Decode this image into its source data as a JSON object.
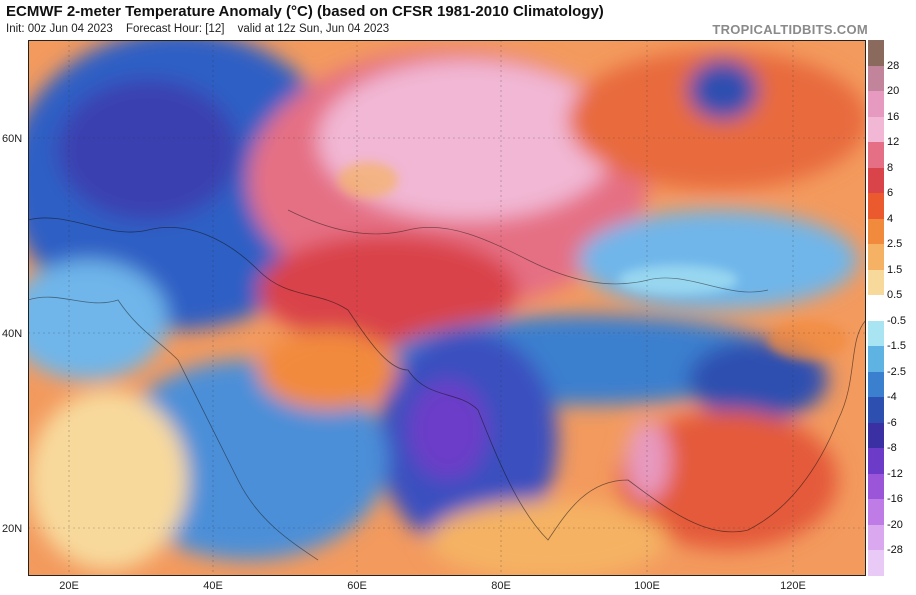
{
  "header": {
    "title": "ECMWF 2-meter Temperature Anomaly (°C) (based on CFSR 1981-2010 Climatology)",
    "init": "Init: 00z Jun 04 2023",
    "forecast_hour": "Forecast Hour: [12]",
    "valid": "valid at 12z Sun, Jun 04 2023",
    "brand": "TROPICALTIDBITS.COM"
  },
  "axes": {
    "lat_labels": [
      "60N",
      "40N",
      "20N"
    ],
    "lon_labels": [
      "20E",
      "40E",
      "60E",
      "80E",
      "100E",
      "120E"
    ]
  },
  "colorbar": {
    "labels": [
      "28",
      "20",
      "16",
      "12",
      "8",
      "6",
      "4",
      "2.5",
      "1.5",
      "0.5",
      "-0.5",
      "-1.5",
      "-2.5",
      "-4",
      "-6",
      "-8",
      "-12",
      "-16",
      "-20",
      "-28"
    ],
    "colors": [
      "#8a6a5c",
      "#c2849a",
      "#e79ac0",
      "#f1b7d4",
      "#e56f84",
      "#d9434a",
      "#ea5a2e",
      "#f28a3d",
      "#f5b264",
      "#f8d99c",
      "#ffffff",
      "#a9e4f3",
      "#5fb3e3",
      "#3b7fcf",
      "#2d4fb0",
      "#3a2fa3",
      "#6c3cc8",
      "#9b55d8",
      "#c07ce6",
      "#d9a8ef",
      "#e9c9f5"
    ]
  },
  "map_regions": {
    "scandinavia_russia_west": "cold",
    "central_russia_kazakhstan": "very-warm",
    "siberia_east": "warm",
    "himalaya_india": "cold",
    "china_south": "warm",
    "china_north": "cold",
    "arabia": "cold"
  }
}
